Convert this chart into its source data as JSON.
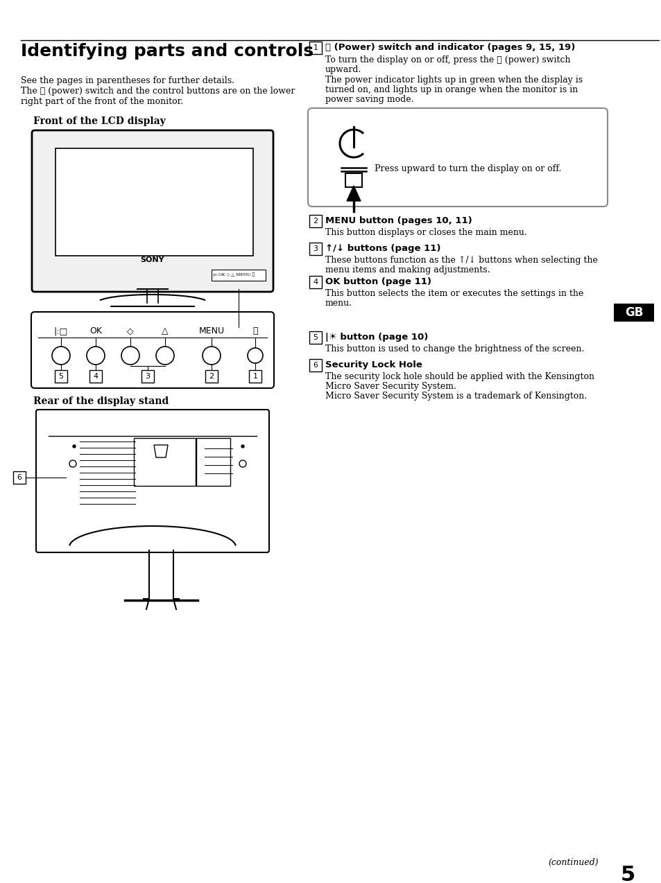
{
  "title": "Identifying parts and controls",
  "bg_color": "#ffffff",
  "text_color": "#000000",
  "page_number": "5",
  "continued_text": "(continued)",
  "gb_label": "GB",
  "intro_text1": "See the pages in parentheses for further details.",
  "intro_text2a": "The  (power) switch and the control buttons are on the lower",
  "intro_text2b": "right part of the front of the monitor.",
  "front_label": "Front of the LCD display",
  "rear_label": "Rear of the display stand",
  "item1_head": " (Power) switch and indicator (pages 9, 15, 19)",
  "item1_t1": "To turn the display on or off, press the  (power) switch",
  "item1_t2": "upward.",
  "item1_t3": "The power indicator lights up in green when the display is",
  "item1_t4": "turned on, and lights up in orange when the monitor is in",
  "item1_t5": "power saving mode.",
  "power_box_text": "Press upward to turn the display on or off.",
  "item2_head": "MENU button (pages 10, 11)",
  "item2_text": "This button displays or closes the main menu.",
  "item3_head": "↑/↓ buttons (page 11)",
  "item3_t1": "These buttons function as the ↑/↓ buttons when selecting the",
  "item3_t2": "menu items and making adjustments.",
  "item4_head": "OK button (page 11)",
  "item4_t1": "This button selects the item or executes the settings in the",
  "item4_t2": "menu.",
  "item5_head": " button (page 10)",
  "item5_text": "This button is used to change the brightness of the screen.",
  "item6_head": "Security Lock Hole",
  "item6_t1": "The security lock hole should be applied with the Kensington",
  "item6_t2": "Micro Saver Security System.",
  "item6_t3": "Micro Saver Security System is a trademark of Kensington."
}
